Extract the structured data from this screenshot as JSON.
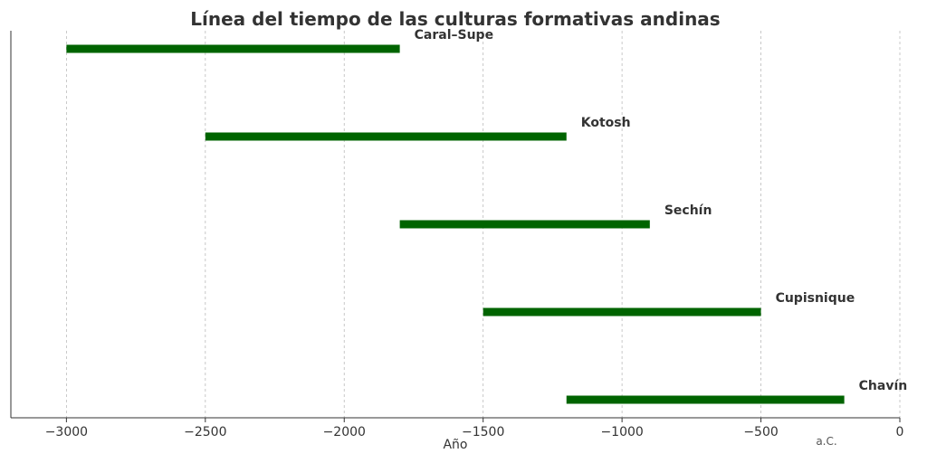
{
  "chart_data": {
    "type": "bar",
    "orientation": "horizontal-range",
    "title": "Línea del tiempo de las culturas formativas andinas",
    "xlabel": "Año",
    "x_annotation": "a.C.",
    "xlim": [
      -3200,
      0
    ],
    "xticks": [
      -3000,
      -2500,
      -2000,
      -1500,
      -1000,
      -500,
      0
    ],
    "xtick_labels": [
      "−3000",
      "−2500",
      "−2000",
      "−1500",
      "−1000",
      "−500",
      "0"
    ],
    "grid": "vertical-dashed",
    "bar_color": "#006400",
    "series": [
      {
        "name": "Caral–Supe",
        "start": -3000,
        "end": -1800
      },
      {
        "name": "Kotosh",
        "start": -2500,
        "end": -1200
      },
      {
        "name": "Sechín",
        "start": -1800,
        "end": -900
      },
      {
        "name": "Cupisnique",
        "start": -1500,
        "end": -500
      },
      {
        "name": "Chavín",
        "start": -1200,
        "end": -200
      }
    ]
  }
}
